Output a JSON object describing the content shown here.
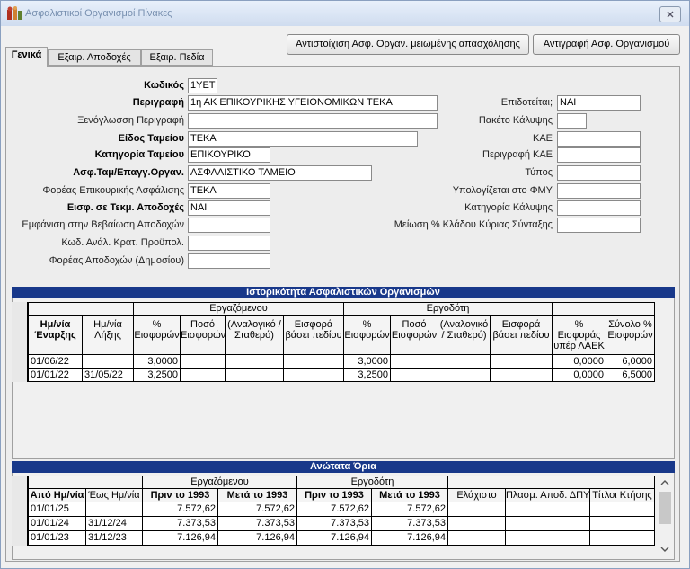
{
  "window": {
    "title": "Ασφαλιστικοί Οργανισμοί Πίνακες"
  },
  "buttons": [
    "Αντιστοίχιση Ασφ. Οργαν. μειωμένης απασχόλησης",
    "Αντιγραφή Ασφ. Οργανισμού"
  ],
  "tabs": [
    "Γενικά",
    "Εξαιρ. Αποδοχές",
    "Εξαιρ. Πεδία"
  ],
  "left_fields": [
    {
      "label": "Κωδικός",
      "value": "1ΥΕΤ",
      "bold": true
    },
    {
      "label": "Περιγραφή",
      "value": "1η ΑΚ ΕΠΙΚΟΥΡΙΚΗΣ ΥΓΕΙΟΝΟΜΙΚΩΝ ΤΕΚΑ",
      "bold": true
    },
    {
      "label": "Ξενόγλωσση Περιγραφή",
      "bold": false
    },
    {
      "label": "Είδος Ταμείου",
      "value": "ΤΕΚΑ",
      "bold": true
    },
    {
      "label": "Κατηγορία Ταμείου",
      "value": "ΕΠΙΚΟΥΡΙΚΟ",
      "bold": true
    },
    {
      "label": "Ασφ.Ταμ/Επαγγ.Οργαν.",
      "value": "ΑΣΦΑΛΙΣΤΙΚΟ ΤΑΜΕΙΟ",
      "bold": true
    },
    {
      "label": "Φορέας Επικουρικής Ασφάλισης",
      "value": "ΤΕΚΑ",
      "bold": false
    },
    {
      "label": "Εισφ. σε Τεκμ. Αποδοχές",
      "value": "ΝΑΙ",
      "bold": true
    },
    {
      "label": "Εμφάνιση στην Βεβαίωση Αποδοχών",
      "bold": false
    },
    {
      "label": "Κωδ. Ανάλ. Κρατ. Προϋπολ.",
      "bold": false
    },
    {
      "label": "Φορέας Αποδοχών (Δημοσίου)",
      "bold": false
    }
  ],
  "right_fields": [
    {
      "label": "Επιδοτείται;",
      "value": "ΝΑΙ"
    },
    {
      "label": "Πακέτο Κάλυψης"
    },
    {
      "label": "ΚΑΕ"
    },
    {
      "label": "Περιγραφή ΚΑΕ"
    },
    {
      "label": "Τύπος"
    },
    {
      "label": "Υπολογίζεται στο ΦΜΥ"
    },
    {
      "label": "Κατηγορία Κάλυψης"
    },
    {
      "label": "Μείωση % Κλάδου Κύριας Σύνταξης"
    }
  ],
  "history": {
    "title": "Ιστορικότητα Ασφαλιστικών Οργανισμών",
    "groups": [
      "Εργαζόμενου",
      "Εργοδότη"
    ],
    "columns": [
      "Ημ/νία Έναρξης",
      "Ημ/νία Λήξης",
      "% Εισφορών",
      "Ποσό Εισφορών",
      "(Αναλογικό / Σταθερό)",
      "Εισφορά βάσει πεδίου",
      "% Εισφορών",
      "Ποσό Εισφορών",
      "(Αναλογικό / Σταθερό)",
      "Εισφορά βάσει πεδίου",
      "% Εισφοράς υπέρ ΛΑΕΚ",
      "Σύνολο % Εισφορών"
    ],
    "rows": [
      [
        "01/06/22",
        null,
        "3,0000",
        null,
        null,
        null,
        "3,0000",
        null,
        null,
        null,
        "0,0000",
        "6,0000"
      ],
      [
        "01/01/22",
        "31/05/22",
        "3,2500",
        null,
        null,
        null,
        "3,2500",
        null,
        null,
        null,
        "0,0000",
        "6,5000"
      ]
    ]
  },
  "limits": {
    "title": "Ανώτατα Όρια",
    "groups": [
      "Εργαζόμενου",
      "Εργοδότη"
    ],
    "columns": [
      "Από Ημ/νία",
      "Έως Ημ/νία",
      "Πριν το 1993",
      "Μετά το 1993",
      "Πριν το 1993",
      "Μετά το 1993",
      "Ελάχιστο",
      "Πλασμ. Αποδ. ΔΠΥ",
      "Τίτλοι Κτήσης"
    ],
    "rows": [
      [
        "01/01/25",
        null,
        "7.572,62",
        "7.572,62",
        "7.572,62",
        "7.572,62",
        null,
        null,
        null
      ],
      [
        "01/01/24",
        "31/12/24",
        "7.373,53",
        "7.373,53",
        "7.373,53",
        "7.373,53",
        null,
        null,
        null
      ],
      [
        "01/01/23",
        "31/12/23",
        "7.126,94",
        "7.126,94",
        "7.126,94",
        "7.126,94",
        null,
        null,
        null
      ]
    ]
  }
}
